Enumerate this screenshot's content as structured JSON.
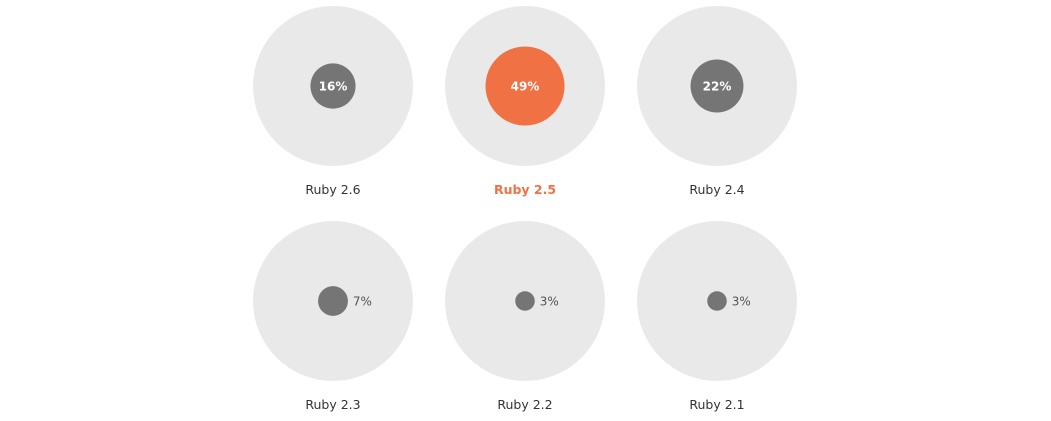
{
  "chart_data": {
    "type": "bubble-grid",
    "title": "",
    "categories": [
      "Ruby 2.6",
      "Ruby 2.5",
      "Ruby 2.4",
      "Ruby 2.3",
      "Ruby 2.2",
      "Ruby 2.1"
    ],
    "values": [
      16,
      49,
      22,
      7,
      3,
      3
    ],
    "value_labels": [
      "16%",
      "49%",
      "22%",
      "7%",
      "3%",
      "3%"
    ],
    "highlight": "Ruby 2.5",
    "colors": {
      "track": "#e9e9e9",
      "bubble": "#757575",
      "highlight": "#f07244",
      "label": "#333333",
      "value_text": "#555555",
      "inner_text": "#ffffff"
    }
  }
}
